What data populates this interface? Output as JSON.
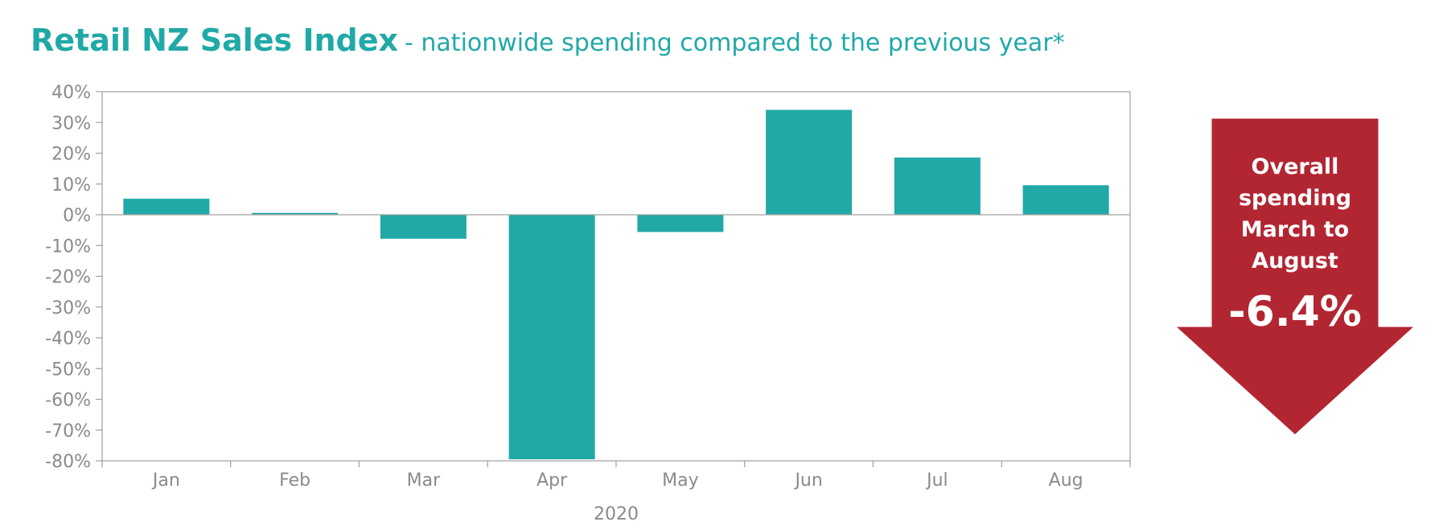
{
  "title": {
    "main": "Retail NZ Sales Index",
    "sub": "- nationwide spending compared to the previous year*"
  },
  "chart_data": {
    "type": "bar",
    "categories": [
      "Jan",
      "Feb",
      "Mar",
      "Apr",
      "May",
      "Jun",
      "Jul",
      "Aug"
    ],
    "values": [
      5.2,
      0.6,
      -7.8,
      -79.5,
      -5.6,
      34.1,
      18.6,
      9.6
    ],
    "xlabel": "2020",
    "ylabel": "",
    "ylim": [
      -80,
      40
    ],
    "yticks": [
      40,
      30,
      20,
      10,
      0,
      -10,
      -20,
      -30,
      -40,
      -50,
      -60,
      -70,
      -80
    ],
    "ytick_labels": [
      "40%",
      "30%",
      "20%",
      "10%",
      "0%",
      "-10%",
      "-20%",
      "-30%",
      "-40%",
      "-50%",
      "-60%",
      "-70%",
      "-80%"
    ],
    "grid": false,
    "bar_color": "#20a9a7"
  },
  "callout": {
    "label_lines": [
      "Overall",
      "spending",
      "March to",
      "August"
    ],
    "value": "-6.4%",
    "color": "#b22632"
  },
  "colors": {
    "accent": "#20a9a7",
    "axis_text": "#8a8a8a",
    "axis_line": "#a0a0a0"
  }
}
